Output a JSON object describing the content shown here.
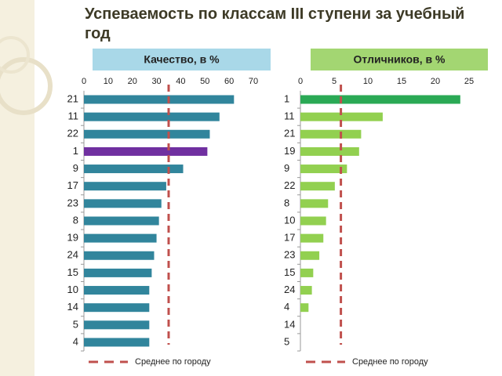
{
  "title": "Успеваемость по классам III ступени за учебный год",
  "chart_data": [
    {
      "type": "bar",
      "orientation": "horizontal",
      "title": "Качество, в %",
      "header_color": "#a9d8e8",
      "categories": [
        "21",
        "11",
        "22",
        "1",
        "9",
        "17",
        "23",
        "8",
        "19",
        "24",
        "15",
        "10",
        "14",
        "5",
        "4"
      ],
      "values": [
        62,
        56,
        52,
        51,
        41,
        34,
        32,
        31,
        30,
        29,
        28,
        27,
        27,
        27,
        27
      ],
      "colors": [
        "#31859c",
        "#31859c",
        "#31859c",
        "#7030a0",
        "#31859c",
        "#31859c",
        "#31859c",
        "#31859c",
        "#31859c",
        "#31859c",
        "#31859c",
        "#31859c",
        "#31859c",
        "#31859c",
        "#31859c"
      ],
      "xlim": [
        0,
        70
      ],
      "xticks": [
        0,
        10,
        20,
        30,
        40,
        50,
        60,
        70
      ],
      "grid": false,
      "reference": {
        "value": 35,
        "label": "Среднее по городу",
        "color": "#c0504d"
      }
    },
    {
      "type": "bar",
      "orientation": "horizontal",
      "title": "Отличников, в %",
      "header_color": "#a3d672",
      "categories": [
        "1",
        "11",
        "21",
        "19",
        "9",
        "22",
        "8",
        "10",
        "17",
        "23",
        "15",
        "24",
        "4",
        "14",
        "5"
      ],
      "values": [
        23.7,
        12.2,
        9.0,
        8.7,
        6.9,
        5.1,
        4.1,
        3.8,
        3.4,
        2.8,
        1.9,
        1.7,
        1.2,
        0,
        0
      ],
      "colors": [
        "#2aa955",
        "#92d050",
        "#92d050",
        "#92d050",
        "#92d050",
        "#92d050",
        "#92d050",
        "#92d050",
        "#92d050",
        "#92d050",
        "#92d050",
        "#92d050",
        "#92d050",
        "#92d050",
        "#92d050"
      ],
      "xlim": [
        0,
        25
      ],
      "xticks": [
        0,
        5,
        10,
        15,
        20,
        25
      ],
      "grid": false,
      "reference": {
        "value": 6.0,
        "label": "Среднее по городу",
        "color": "#c0504d"
      }
    }
  ]
}
